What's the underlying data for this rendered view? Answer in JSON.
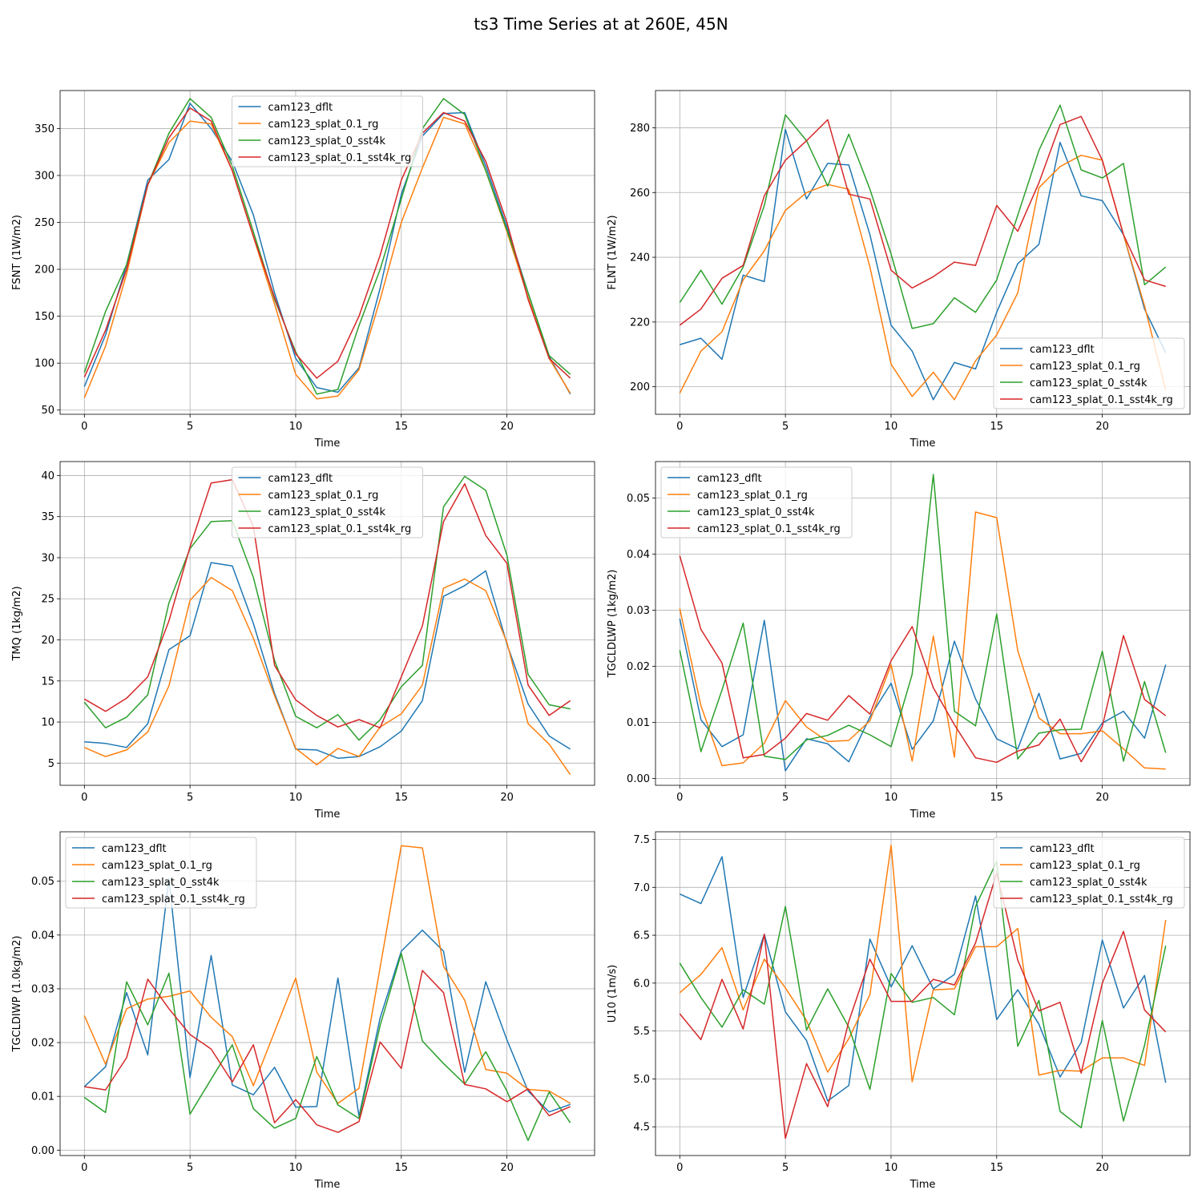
{
  "figure_title": "ts3 Time Series at at 260E, 45N",
  "colors": {
    "cam123_dflt": "#1f77b4",
    "cam123_splat_0.1_rg": "#ff7f0e",
    "cam123_splat_0_sst4k": "#2ca02c",
    "cam123_splat_0.1_sst4k_rg": "#d62728"
  },
  "chart_data": [
    {
      "type": "line",
      "xlabel": "Time",
      "ylabel": "FSNT (1W/m2)",
      "xlim": [
        -1.15,
        24.15
      ],
      "ylim": [
        45.5,
        390.5
      ],
      "xticks": [
        0,
        5,
        10,
        15,
        20
      ],
      "yticks": [
        50,
        100,
        150,
        200,
        250,
        300,
        350
      ],
      "legend_loc": "upper-center",
      "x": [
        0,
        1,
        2,
        3,
        4,
        5,
        6,
        7,
        8,
        9,
        10,
        11,
        12,
        13,
        14,
        15,
        16,
        17,
        18,
        19,
        20,
        21,
        22,
        23
      ],
      "series": [
        {
          "name": "cam123_dflt",
          "values": [
            75,
            130,
            205,
            295,
            317,
            377,
            350,
            315,
            258,
            175,
            105,
            74,
            69,
            95,
            180,
            280,
            342,
            366,
            367,
            310,
            245,
            175,
            107,
            67
          ]
        },
        {
          "name": "cam123_splat_0.1_rg",
          "values": [
            63,
            118,
            195,
            290,
            335,
            358,
            355,
            305,
            235,
            163,
            88,
            62,
            65,
            93,
            168,
            250,
            308,
            362,
            355,
            305,
            240,
            170,
            105,
            68
          ]
        },
        {
          "name": "cam123_splat_0_sst4k",
          "values": [
            90,
            155,
            205,
            290,
            345,
            382,
            362,
            310,
            240,
            168,
            112,
            67,
            72,
            140,
            200,
            275,
            350,
            382,
            365,
            305,
            242,
            175,
            108,
            88
          ]
        },
        {
          "name": "cam123_splat_0.1_sst4k_rg",
          "values": [
            85,
            135,
            200,
            290,
            340,
            372,
            358,
            305,
            235,
            170,
            110,
            84,
            102,
            150,
            215,
            295,
            345,
            367,
            358,
            315,
            250,
            168,
            105,
            84
          ]
        }
      ]
    },
    {
      "type": "line",
      "xlabel": "Time",
      "ylabel": "FLNT (1W/m2)",
      "xlim": [
        -1.15,
        24.15
      ],
      "ylim": [
        191.5,
        291.5
      ],
      "xticks": [
        0,
        5,
        10,
        15,
        20
      ],
      "yticks": [
        200,
        220,
        240,
        260,
        280
      ],
      "legend_loc": "lower-right",
      "x": [
        0,
        1,
        2,
        3,
        4,
        5,
        6,
        7,
        8,
        9,
        10,
        11,
        12,
        13,
        14,
        15,
        16,
        17,
        18,
        19,
        20,
        21,
        22,
        23
      ],
      "series": [
        {
          "name": "cam123_dflt",
          "values": [
            213,
            215,
            208.5,
            234.5,
            232.5,
            279.5,
            258,
            269,
            268.5,
            247,
            219,
            211,
            196,
            207.5,
            205.5,
            223,
            238,
            244,
            275.5,
            259,
            257.5,
            247,
            224,
            210.5
          ]
        },
        {
          "name": "cam123_splat_0.1_rg",
          "values": [
            198,
            211,
            217,
            233,
            242,
            254.5,
            260,
            262.5,
            261,
            237,
            207,
            197,
            204.5,
            196,
            208,
            216,
            229,
            261.5,
            268,
            271.5,
            270,
            247,
            225,
            199
          ]
        },
        {
          "name": "cam123_splat_0_sst4k",
          "values": [
            226,
            236,
            225.5,
            237,
            256,
            284,
            276,
            262,
            278,
            261,
            241,
            218,
            219.5,
            227.5,
            223,
            233,
            253,
            273,
            287,
            267,
            264.5,
            269,
            231.5,
            237
          ]
        },
        {
          "name": "cam123_splat_0.1_sst4k_rg",
          "values": [
            219,
            224,
            233.5,
            237.5,
            259,
            270,
            276,
            282.5,
            259.5,
            258,
            236,
            230.5,
            234,
            238.5,
            237.5,
            256,
            248,
            263,
            281,
            283.5,
            270,
            247,
            233,
            231
          ]
        }
      ]
    },
    {
      "type": "line",
      "xlabel": "Time",
      "ylabel": "TMQ (1kg/m2)",
      "xlim": [
        -1.15,
        24.15
      ],
      "ylim": [
        2.3,
        41.7
      ],
      "xticks": [
        0,
        5,
        10,
        15,
        20
      ],
      "yticks": [
        5,
        10,
        15,
        20,
        25,
        30,
        35,
        40
      ],
      "legend_loc": "upper-center",
      "x": [
        0,
        1,
        2,
        3,
        4,
        5,
        6,
        7,
        8,
        9,
        10,
        11,
        12,
        13,
        14,
        15,
        16,
        17,
        18,
        19,
        20,
        21,
        22,
        23
      ],
      "series": [
        {
          "name": "cam123_dflt",
          "values": [
            7.6,
            7.4,
            6.9,
            9.8,
            18.8,
            20.5,
            29.4,
            29,
            22,
            13.5,
            6.7,
            6.6,
            5.6,
            5.8,
            7,
            8.9,
            12.6,
            25.3,
            26.6,
            28.4,
            19.5,
            12.2,
            8.3,
            6.7
          ]
        },
        {
          "name": "cam123_splat_0.1_rg",
          "values": [
            6.9,
            5.8,
            6.6,
            8.8,
            14.4,
            24.8,
            27.6,
            26,
            20.2,
            13.2,
            6.8,
            4.8,
            6.8,
            5.8,
            9.4,
            11,
            14.5,
            26.3,
            27.4,
            26,
            19.7,
            9.8,
            7.3,
            3.6
          ]
        },
        {
          "name": "cam123_splat_0_sst4k",
          "values": [
            12.4,
            9.3,
            10.6,
            13.3,
            24.5,
            31.1,
            34.4,
            34.5,
            27.6,
            17.5,
            10.7,
            9.3,
            10.9,
            7.8,
            10.3,
            14.3,
            16.9,
            36.2,
            39.9,
            38.2,
            30.3,
            15.8,
            12.1,
            11.6
          ]
        },
        {
          "name": "cam123_splat_0.1_sst4k_rg",
          "values": [
            12.8,
            11.3,
            12.9,
            15.5,
            22.3,
            31.3,
            39.1,
            39.5,
            33.8,
            16.9,
            12.7,
            10.8,
            9.4,
            10.3,
            9.3,
            15.5,
            21.7,
            34.4,
            39,
            32.7,
            29.3,
            14.5,
            10.8,
            12.6
          ]
        }
      ]
    },
    {
      "type": "line",
      "xlabel": "Time",
      "ylabel": "TGCLDLWP (1kg/m2)",
      "xlim": [
        -1.15,
        24.15
      ],
      "ylim": [
        -0.0012,
        0.0565
      ],
      "xticks": [
        0,
        5,
        10,
        15,
        20
      ],
      "yticks": [
        0.0,
        0.01,
        0.02,
        0.03,
        0.04,
        0.05
      ],
      "legend_loc": "upper-left",
      "x": [
        0,
        1,
        2,
        3,
        4,
        5,
        6,
        7,
        8,
        9,
        10,
        11,
        12,
        13,
        14,
        15,
        16,
        17,
        18,
        19,
        20,
        21,
        22,
        23
      ],
      "series": [
        {
          "name": "cam123_dflt",
          "values": [
            0.0285,
            0.0105,
            0.0057,
            0.0078,
            0.0282,
            0.0014,
            0.0071,
            0.0062,
            0.003,
            0.011,
            0.017,
            0.0052,
            0.0103,
            0.0245,
            0.0142,
            0.0071,
            0.0053,
            0.0152,
            0.0035,
            0.0045,
            0.0099,
            0.012,
            0.0072,
            0.0203
          ]
        },
        {
          "name": "cam123_splat_0.1_rg",
          "values": [
            0.0303,
            0.013,
            0.0023,
            0.0028,
            0.0063,
            0.0139,
            0.0092,
            0.0066,
            0.0068,
            0.0103,
            0.0203,
            0.0031,
            0.0254,
            0.0038,
            0.0475,
            0.0465,
            0.0228,
            0.0108,
            0.008,
            0.008,
            0.0085,
            0.0053,
            0.0019,
            0.0017
          ]
        },
        {
          "name": "cam123_splat_0_sst4k",
          "values": [
            0.0229,
            0.0048,
            0.0158,
            0.0277,
            0.004,
            0.0034,
            0.0069,
            0.0077,
            0.0095,
            0.0078,
            0.0057,
            0.0186,
            0.0542,
            0.012,
            0.0094,
            0.0293,
            0.0035,
            0.0081,
            0.0087,
            0.0088,
            0.0227,
            0.0031,
            0.0173,
            0.0046
          ]
        },
        {
          "name": "cam123_splat_0.1_sst4k_rg",
          "values": [
            0.0397,
            0.0266,
            0.0206,
            0.0037,
            0.0043,
            0.0072,
            0.0116,
            0.0104,
            0.0148,
            0.0115,
            0.021,
            0.0271,
            0.0162,
            0.0096,
            0.0037,
            0.0029,
            0.0049,
            0.006,
            0.0106,
            0.003,
            0.0093,
            0.0255,
            0.0141,
            0.0112
          ]
        }
      ]
    },
    {
      "type": "line",
      "xlabel": "Time",
      "ylabel": "TGCLDIWP (1.0kg/m2)",
      "xlim": [
        -1.15,
        24.15
      ],
      "ylim": [
        -0.001,
        0.0592
      ],
      "xticks": [
        0,
        5,
        10,
        15,
        20
      ],
      "yticks": [
        0.0,
        0.01,
        0.02,
        0.03,
        0.04,
        0.05
      ],
      "legend_loc": "upper-left",
      "x": [
        0,
        1,
        2,
        3,
        4,
        5,
        6,
        7,
        8,
        9,
        10,
        11,
        12,
        13,
        14,
        15,
        16,
        17,
        18,
        19,
        20,
        21,
        22,
        23
      ],
      "series": [
        {
          "name": "cam123_dflt",
          "values": [
            0.0118,
            0.0155,
            0.0293,
            0.0177,
            0.0505,
            0.0135,
            0.0362,
            0.0121,
            0.0103,
            0.0154,
            0.008,
            0.0081,
            0.032,
            0.0063,
            0.0246,
            0.037,
            0.0409,
            0.037,
            0.0145,
            0.0313,
            0.0205,
            0.011,
            0.0071,
            0.0085
          ]
        },
        {
          "name": "cam123_splat_0.1_rg",
          "values": [
            0.025,
            0.016,
            0.0263,
            0.0281,
            0.0286,
            0.0296,
            0.0247,
            0.0211,
            0.012,
            0.022,
            0.032,
            0.0145,
            0.0087,
            0.0115,
            0.034,
            0.0566,
            0.0562,
            0.0342,
            0.0279,
            0.015,
            0.0143,
            0.0113,
            0.011,
            0.0087
          ]
        },
        {
          "name": "cam123_splat_0_sst4k",
          "values": [
            0.0098,
            0.007,
            0.0313,
            0.0233,
            0.0329,
            0.0067,
            0.0132,
            0.0196,
            0.0077,
            0.0041,
            0.0059,
            0.0174,
            0.0084,
            0.0059,
            0.0232,
            0.0366,
            0.0203,
            0.0161,
            0.0123,
            0.0183,
            0.011,
            0.0018,
            0.0108,
            0.0051
          ]
        },
        {
          "name": "cam123_splat_0.1_sst4k_rg",
          "values": [
            0.0118,
            0.0112,
            0.0172,
            0.0318,
            0.0263,
            0.0215,
            0.0188,
            0.0127,
            0.0196,
            0.0051,
            0.0094,
            0.0047,
            0.0033,
            0.0053,
            0.0201,
            0.0152,
            0.0334,
            0.0293,
            0.0122,
            0.0114,
            0.009,
            0.0114,
            0.0064,
            0.0081
          ]
        }
      ]
    },
    {
      "type": "line",
      "xlabel": "Time",
      "ylabel": "U10 (1m/s)",
      "xlim": [
        -1.15,
        24.15
      ],
      "ylim": [
        4.2,
        7.58
      ],
      "xticks": [
        0,
        5,
        10,
        15,
        20
      ],
      "yticks": [
        4.5,
        5.0,
        5.5,
        6.0,
        6.5,
        7.0,
        7.5
      ],
      "legend_loc": "upper-right",
      "x": [
        0,
        1,
        2,
        3,
        4,
        5,
        6,
        7,
        8,
        9,
        10,
        11,
        12,
        13,
        14,
        15,
        16,
        17,
        18,
        19,
        20,
        21,
        22,
        23
      ],
      "series": [
        {
          "name": "cam123_dflt",
          "values": [
            6.93,
            6.83,
            7.32,
            5.85,
            6.51,
            5.7,
            5.4,
            4.77,
            4.93,
            6.46,
            5.96,
            6.39,
            5.94,
            6.09,
            6.91,
            5.62,
            5.93,
            5.57,
            5.02,
            5.38,
            6.45,
            5.74,
            6.08,
            4.96
          ]
        },
        {
          "name": "cam123_splat_0.1_rg",
          "values": [
            5.9,
            6.09,
            6.37,
            5.72,
            6.25,
            5.95,
            5.61,
            5.07,
            5.42,
            5.88,
            7.44,
            4.97,
            5.93,
            5.94,
            6.38,
            6.38,
            6.57,
            5.04,
            5.09,
            5.08,
            5.22,
            5.22,
            5.14,
            6.66
          ]
        },
        {
          "name": "cam123_splat_0_sst4k",
          "values": [
            6.21,
            5.85,
            5.54,
            5.93,
            5.78,
            6.8,
            5.51,
            5.94,
            5.54,
            4.89,
            6.1,
            5.8,
            5.85,
            5.67,
            6.8,
            7.27,
            5.34,
            5.82,
            4.66,
            4.49,
            5.61,
            4.56,
            5.35,
            6.39
          ]
        },
        {
          "name": "cam123_splat_0.1_sst4k_rg",
          "values": [
            5.68,
            5.41,
            6.04,
            5.52,
            6.51,
            4.38,
            5.16,
            4.71,
            5.6,
            6.25,
            5.81,
            5.81,
            6.04,
            5.98,
            6.42,
            7.15,
            6.24,
            5.71,
            5.8,
            5.06,
            6.0,
            6.54,
            5.72,
            5.49
          ]
        }
      ]
    }
  ]
}
